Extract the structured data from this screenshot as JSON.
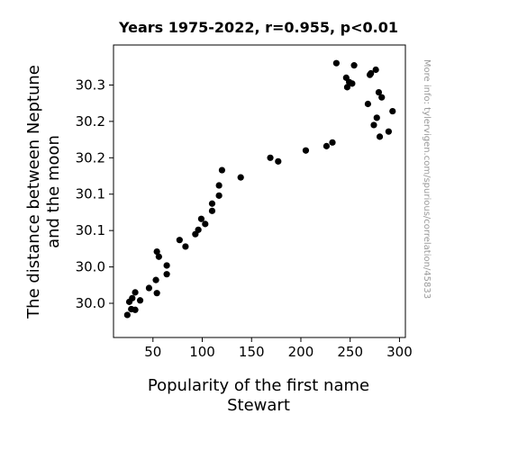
{
  "chart_data": {
    "type": "scatter",
    "title": "Years 1975-2022, r=0.955, p<0.01",
    "xlabel": [
      "Popularity of the first name",
      "Stewart"
    ],
    "ylabel": [
      "The distance between Neptune",
      "and the moon"
    ],
    "watermark": "More info: tylervigen.com/spurious/correlation/45833",
    "xlim": [
      10,
      306
    ],
    "ylim": [
      29.953,
      30.355
    ],
    "x_ticks": [
      50,
      100,
      150,
      200,
      250,
      300
    ],
    "y_ticks": [
      {
        "value": 30.0,
        "label": "30.0"
      },
      {
        "value": 30.05,
        "label": "30.0"
      },
      {
        "value": 30.1,
        "label": "30.1"
      },
      {
        "value": 30.15,
        "label": "30.1"
      },
      {
        "value": 30.2,
        "label": "30.2"
      },
      {
        "value": 30.25,
        "label": "30.2"
      },
      {
        "value": 30.3,
        "label": "30.3"
      }
    ],
    "grid": false,
    "marker_color": "#000000",
    "points": [
      [
        24,
        29.984
      ],
      [
        26,
        30.002
      ],
      [
        28,
        29.992
      ],
      [
        29,
        30.007
      ],
      [
        32,
        29.991
      ],
      [
        32,
        30.015
      ],
      [
        37,
        30.004
      ],
      [
        46,
        30.021
      ],
      [
        53,
        30.032
      ],
      [
        54,
        30.014
      ],
      [
        54,
        30.071
      ],
      [
        56,
        30.064
      ],
      [
        64,
        30.052
      ],
      [
        64,
        30.04
      ],
      [
        77,
        30.087
      ],
      [
        83,
        30.078
      ],
      [
        93,
        30.095
      ],
      [
        96,
        30.101
      ],
      [
        99,
        30.116
      ],
      [
        103,
        30.109
      ],
      [
        110,
        30.127
      ],
      [
        110,
        30.137
      ],
      [
        117,
        30.148
      ],
      [
        117,
        30.162
      ],
      [
        120,
        30.183
      ],
      [
        139,
        30.173
      ],
      [
        169,
        30.2
      ],
      [
        177,
        30.195
      ],
      [
        205,
        30.21
      ],
      [
        226,
        30.216
      ],
      [
        232,
        30.221
      ],
      [
        236,
        30.33
      ],
      [
        246,
        30.31
      ],
      [
        247,
        30.297
      ],
      [
        249,
        30.304
      ],
      [
        252,
        30.302
      ],
      [
        254,
        30.327
      ],
      [
        268,
        30.274
      ],
      [
        270,
        30.314
      ],
      [
        271,
        30.316
      ],
      [
        274,
        30.245
      ],
      [
        276,
        30.321
      ],
      [
        277,
        30.255
      ],
      [
        279,
        30.29
      ],
      [
        280,
        30.229
      ],
      [
        282,
        30.283
      ],
      [
        289,
        30.236
      ],
      [
        293,
        30.264
      ]
    ]
  }
}
